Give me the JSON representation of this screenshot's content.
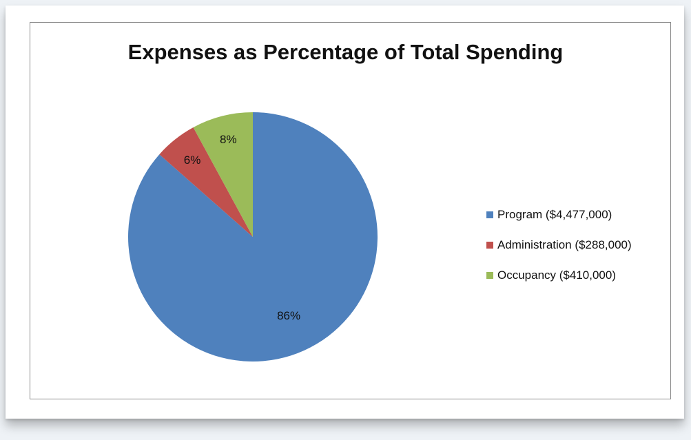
{
  "chart_data": {
    "type": "pie",
    "title": "Expenses as Percentage of Total Spending",
    "slices": [
      {
        "label": "Program",
        "legend": "Program ($4,477,000)",
        "value": 4477000,
        "percent_label": "86%",
        "color": "#4f81bd"
      },
      {
        "label": "Administration",
        "legend": "Administration  ($288,000)",
        "value": 288000,
        "percent_label": "6%",
        "color": "#c0504d"
      },
      {
        "label": "Occupancy",
        "legend": "Occupancy ($410,000)",
        "value": 410000,
        "percent_label": "8%",
        "color": "#9bbb59"
      }
    ],
    "legend_position": "right"
  }
}
